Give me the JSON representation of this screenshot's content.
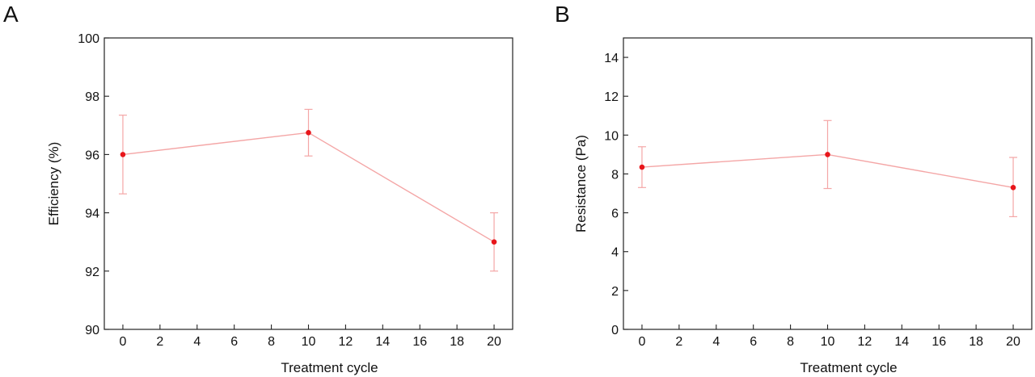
{
  "chart_data": [
    {
      "panel": "A",
      "type": "line",
      "xlabel": "Treatment cycle",
      "ylabel": "Efficiency (%)",
      "xlim": [
        -1,
        21
      ],
      "ylim": [
        90,
        100
      ],
      "xticks": [
        0,
        2,
        4,
        6,
        8,
        10,
        12,
        14,
        16,
        18,
        20
      ],
      "yticks": [
        90,
        92,
        94,
        96,
        98,
        100
      ],
      "line_color": "#f4a6a6",
      "marker_color": "#e8161b",
      "points": [
        {
          "x": 0,
          "y": 96.0,
          "err_low": 94.65,
          "err_high": 97.35
        },
        {
          "x": 10,
          "y": 96.75,
          "err_low": 95.95,
          "err_high": 97.55
        },
        {
          "x": 20,
          "y": 93.0,
          "err_low": 92.0,
          "err_high": 94.0
        }
      ]
    },
    {
      "panel": "B",
      "type": "line",
      "xlabel": "Treatment cycle",
      "ylabel": "Resistance (Pa)",
      "xlim": [
        -1,
        21
      ],
      "ylim": [
        0,
        15
      ],
      "xticks": [
        0,
        2,
        4,
        6,
        8,
        10,
        12,
        14,
        16,
        18,
        20
      ],
      "yticks": [
        0,
        2,
        4,
        6,
        8,
        10,
        12,
        14
      ],
      "line_color": "#f4a6a6",
      "marker_color": "#e8161b",
      "points": [
        {
          "x": 0,
          "y": 8.35,
          "err_low": 7.3,
          "err_high": 9.4
        },
        {
          "x": 10,
          "y": 9.0,
          "err_low": 7.25,
          "err_high": 10.75
        },
        {
          "x": 20,
          "y": 7.3,
          "err_low": 5.8,
          "err_high": 8.85
        }
      ]
    }
  ]
}
